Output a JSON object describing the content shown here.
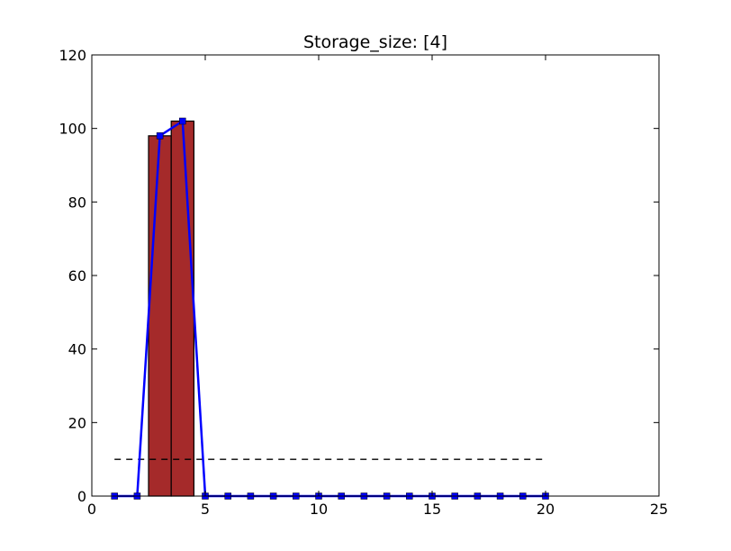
{
  "chart_data": {
    "type": "bar",
    "title": "Storage_size: [4]",
    "xlabel": "",
    "ylabel": "",
    "xlim": [
      0,
      25
    ],
    "ylim": [
      0,
      120
    ],
    "xticks": [
      0,
      5,
      10,
      15,
      20,
      25
    ],
    "yticks": [
      0,
      20,
      40,
      60,
      80,
      100,
      120
    ],
    "grid": false,
    "bars": {
      "x": [
        3,
        4
      ],
      "values": [
        98,
        102
      ],
      "width": 1,
      "color": "#a52a2a",
      "edgecolor": "#000000"
    },
    "line": {
      "x": [
        1,
        2,
        3,
        4,
        5,
        6,
        7,
        8,
        9,
        10,
        11,
        12,
        13,
        14,
        15,
        16,
        17,
        18,
        19,
        20
      ],
      "values": [
        0,
        0,
        98,
        102,
        0,
        0,
        0,
        0,
        0,
        0,
        0,
        0,
        0,
        0,
        0,
        0,
        0,
        0,
        0,
        0
      ],
      "color": "#0000ff",
      "marker": "square"
    },
    "reference_line": {
      "x": [
        1,
        20
      ],
      "value": 10,
      "style": "dashed",
      "color": "#000000"
    }
  }
}
